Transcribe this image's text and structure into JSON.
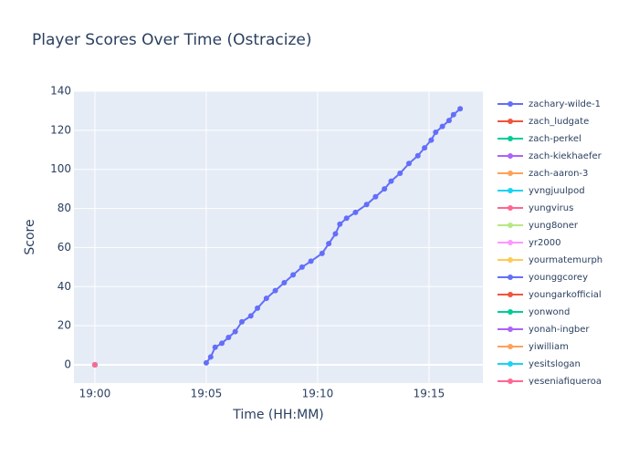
{
  "chart_data": {
    "type": "line",
    "title": "Player Scores Over Time (Ostracize)",
    "x_label": "Time (HH:MM)",
    "y_label": "Score",
    "xlim": [
      1139.06,
      1157.42
    ],
    "xticks": [
      {
        "value": 1140,
        "label": "19:00"
      },
      {
        "value": 1145,
        "label": "19:05"
      },
      {
        "value": 1150,
        "label": "19:10"
      },
      {
        "value": 1155,
        "label": "19:15"
      }
    ],
    "ylim": [
      -9.33,
      140
    ],
    "yticks": [
      0,
      20,
      40,
      60,
      80,
      100,
      120,
      140
    ],
    "grid": true,
    "series": [
      {
        "name": "zachary-wilde-1",
        "color": "#636efa",
        "x": [
          1145.0,
          1145.2,
          1145.4,
          1145.7,
          1146.0,
          1146.3,
          1146.6,
          1147.0,
          1147.3,
          1147.7,
          1148.1,
          1148.5,
          1148.9,
          1149.3,
          1149.7,
          1150.2,
          1150.5,
          1150.8,
          1151.0,
          1151.3,
          1151.7,
          1152.2,
          1152.6,
          1153.0,
          1153.3,
          1153.7,
          1154.1,
          1154.5,
          1154.8,
          1155.1,
          1155.3,
          1155.6,
          1155.9,
          1156.1,
          1156.4
        ],
        "values": [
          1,
          4,
          9,
          11,
          14,
          17,
          22,
          25,
          29,
          34,
          38,
          42,
          46,
          50,
          53,
          57,
          62,
          67,
          72,
          75,
          78,
          82,
          86,
          90,
          94,
          98,
          103,
          107,
          111,
          115,
          119,
          122,
          125,
          128,
          131
        ]
      },
      {
        "name": "zach_ludgate",
        "color": "#EF553B",
        "x": [
          1140
        ],
        "values": [
          0
        ]
      },
      {
        "name": "zach-perkel",
        "color": "#00cc96",
        "x": [
          1140
        ],
        "values": [
          0
        ]
      },
      {
        "name": "zach-kiekhaefer",
        "color": "#ab63fa",
        "x": [
          1140
        ],
        "values": [
          0
        ]
      },
      {
        "name": "zach-aaron-3",
        "color": "#FFA15A",
        "x": [
          1140
        ],
        "values": [
          0
        ]
      },
      {
        "name": "yvngjuulpod",
        "color": "#19d3f3",
        "x": [
          1140
        ],
        "values": [
          0
        ]
      },
      {
        "name": "yungvirus",
        "color": "#FF6692",
        "x": [
          1140
        ],
        "values": [
          0
        ]
      },
      {
        "name": "yung8oner",
        "color": "#B6E880",
        "x": [
          1140
        ],
        "values": [
          0
        ]
      },
      {
        "name": "yr2000",
        "color": "#FF97FF",
        "x": [
          1140
        ],
        "values": [
          0
        ]
      },
      {
        "name": "yourmatemurph",
        "color": "#FECB52",
        "x": [
          1140
        ],
        "values": [
          0
        ]
      },
      {
        "name": "younggcorey",
        "color": "#636efa",
        "x": [
          1140
        ],
        "values": [
          0
        ]
      },
      {
        "name": "youngarkofficial",
        "color": "#EF553B",
        "x": [
          1140
        ],
        "values": [
          0
        ]
      },
      {
        "name": "yonwond",
        "color": "#00cc96",
        "x": [
          1140
        ],
        "values": [
          0
        ]
      },
      {
        "name": "yonah-ingber",
        "color": "#ab63fa",
        "x": [
          1140
        ],
        "values": [
          0
        ]
      },
      {
        "name": "yiwilliam",
        "color": "#FFA15A",
        "x": [
          1140
        ],
        "values": [
          0
        ]
      },
      {
        "name": "yesitslogan",
        "color": "#19d3f3",
        "x": [
          1140
        ],
        "values": [
          0
        ]
      },
      {
        "name": "yeseniafigueroa",
        "color": "#FF6692",
        "x": [
          1140
        ],
        "values": [
          0
        ]
      }
    ]
  }
}
